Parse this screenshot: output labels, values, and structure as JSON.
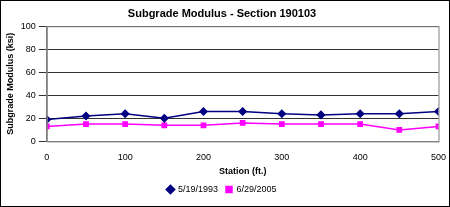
{
  "chart_data": {
    "type": "line",
    "title": "Subgrade Modulus - Section 190103",
    "x_label": "Station (ft.)",
    "y_label": "Subgrade Modulus (ksi)",
    "x": [
      0,
      50,
      100,
      150,
      200,
      250,
      300,
      350,
      400,
      450,
      500
    ],
    "series": [
      {
        "name": "5/19/1993",
        "color": "#000080",
        "marker": "diamond",
        "values": [
          19,
          22,
          24,
          20,
          26,
          26,
          24,
          23,
          24,
          24,
          26
        ]
      },
      {
        "name": "6/29/2005",
        "color": "#ff00ff",
        "marker": "square",
        "values": [
          13,
          15,
          15,
          14,
          14,
          16,
          15,
          15,
          15,
          10,
          13
        ]
      }
    ],
    "xlim": [
      0,
      500
    ],
    "xticks": [
      0,
      100,
      200,
      300,
      400,
      500
    ],
    "ylim": [
      0,
      100
    ],
    "yticks": [
      0,
      20,
      40,
      60,
      80,
      100
    ],
    "grid": true,
    "legend": "bottom"
  }
}
